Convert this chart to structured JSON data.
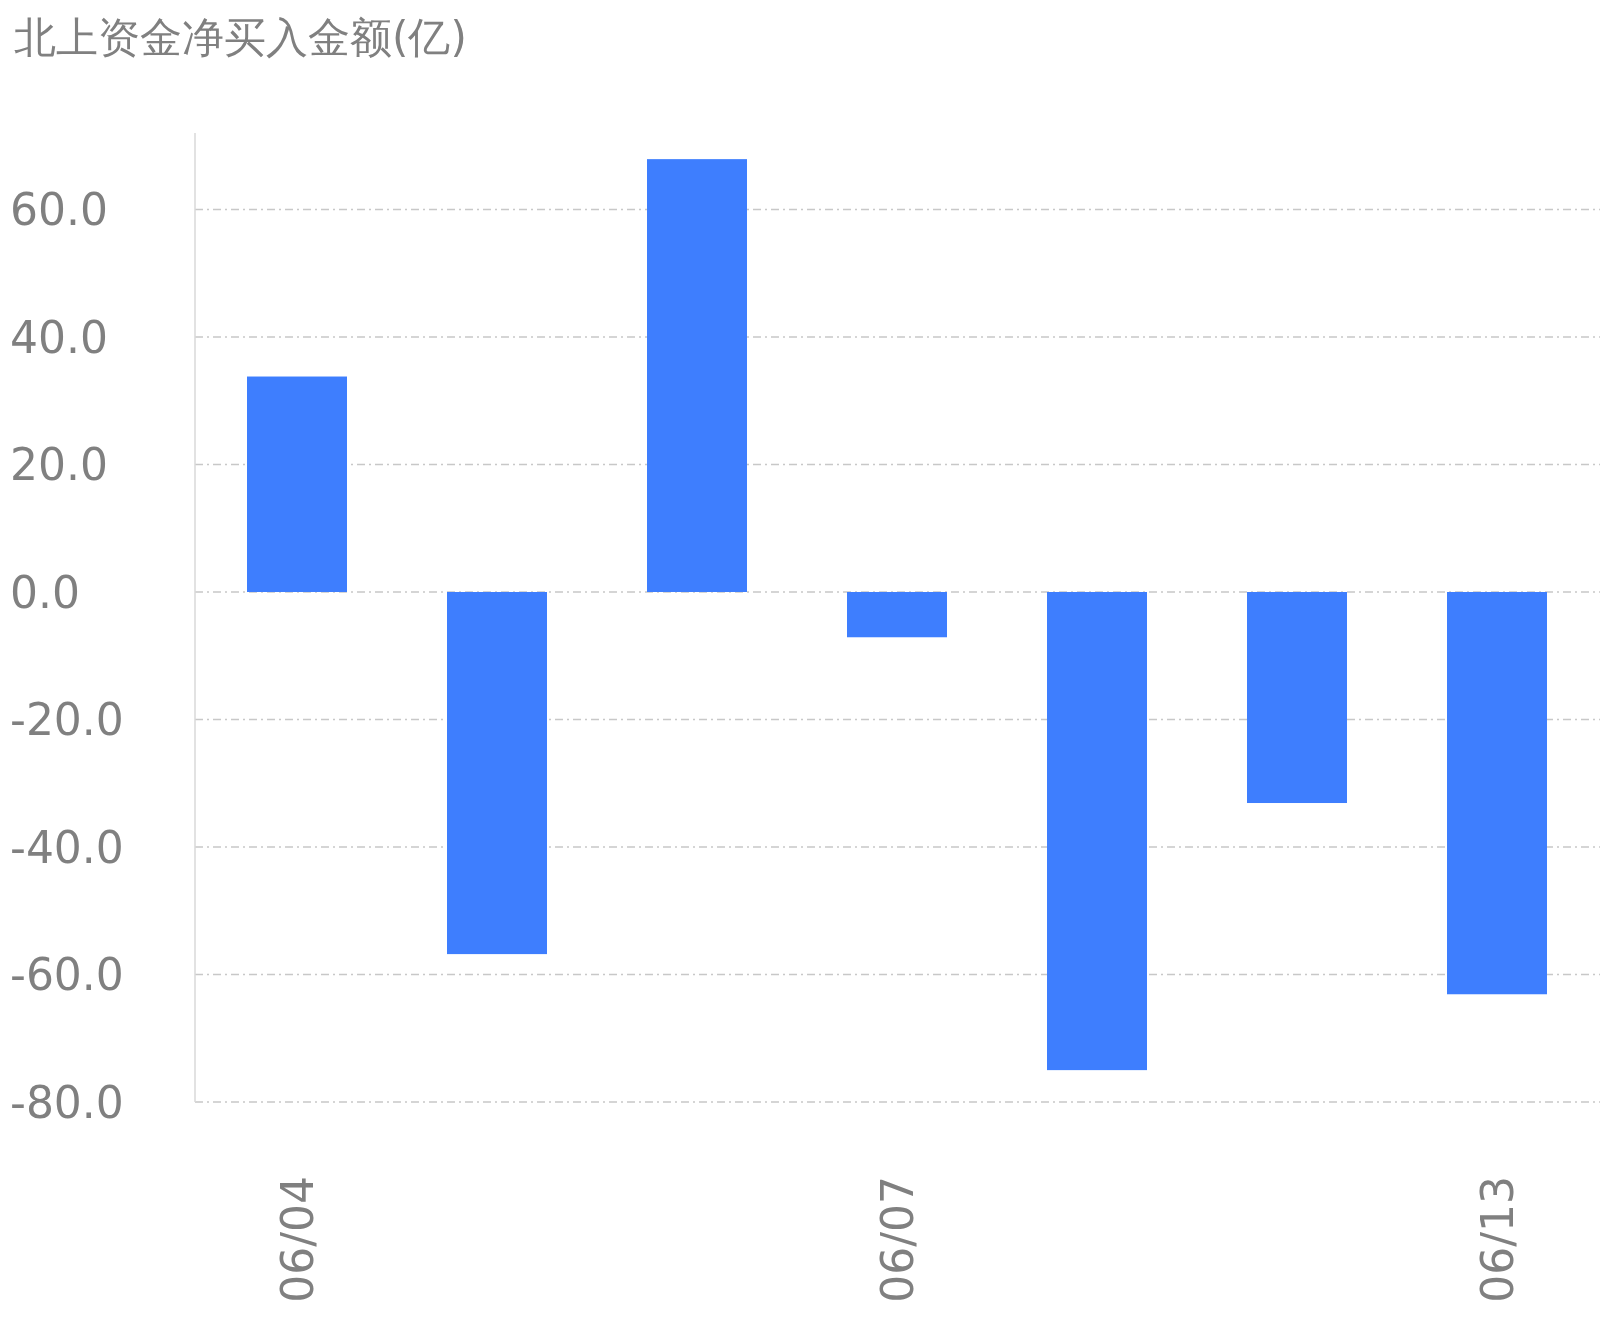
{
  "chart_data": {
    "type": "bar",
    "title": "北上资金净买入金额(亿)",
    "categories": [
      "06/04",
      null,
      null,
      "06/07",
      null,
      null,
      "06/13"
    ],
    "values": [
      33.8,
      -56.8,
      67.9,
      -7.1,
      -75.0,
      -33.1,
      -63.1
    ],
    "color": "#3e7efe",
    "ylim": [
      -80,
      72
    ],
    "yticks": [
      {
        "value": -80,
        "label": "-80.0"
      },
      {
        "value": -60,
        "label": "-60.0"
      },
      {
        "value": -40,
        "label": "-40.0"
      },
      {
        "value": -20,
        "label": "-20.0"
      },
      {
        "value": 0,
        "label": "0.0"
      },
      {
        "value": 20,
        "label": "20.0"
      },
      {
        "value": 40,
        "label": "40.0"
      },
      {
        "value": 60,
        "label": "60.0"
      }
    ],
    "grid": "y"
  }
}
